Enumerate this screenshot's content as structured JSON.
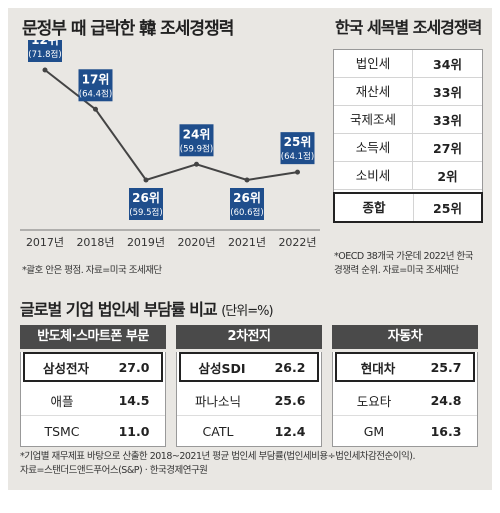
{
  "main_title": "문정부 때 급락한 韓 조세경쟁력",
  "rank_title": "한국 세목별 조세경쟁력",
  "corp_title": "글로벌 기업 법인세 부담률 비교",
  "corp_unit": "(단위=%)",
  "chart_note": "*괄호 안은 평점. 자료=미국 조세재단",
  "rank_note_line1": "*OECD 38개국 가운데 2022년 한국",
  "rank_note_line2": "경쟁력 순위. 자료=미국 조세재단",
  "footer_line1": "*기업별 재무제표 바탕으로 산출한 2018~2021년 평균 법인세 부담률(법인세비용÷법인세차감전순이익).",
  "footer_line2": "자료=스탠더드앤드푸어스(S&P) · 한국경제연구원",
  "chart_data": {
    "type": "line",
    "x": [
      "2017년",
      "2018년",
      "2019년",
      "2020년",
      "2021년",
      "2022년"
    ],
    "ranks": [
      12,
      17,
      26,
      24,
      26,
      25
    ],
    "rank_labels": [
      "12위",
      "17위",
      "26위",
      "24위",
      "26위",
      "25위"
    ],
    "score_labels": [
      "(71.8점)",
      "(64.4점)",
      "(59.5점)",
      "(59.9점)",
      "(60.6점)",
      "(64.1점)"
    ],
    "scores": [
      71.8,
      64.4,
      59.5,
      59.9,
      60.6,
      64.1
    ],
    "y_axis": "rank (inverted, lower is better)",
    "grid": false,
    "colors": {
      "line": "#444444",
      "label_box": "#1f4e8c"
    }
  },
  "rank_table": [
    {
      "tax": "법인세",
      "rank": "34위"
    },
    {
      "tax": "재산세",
      "rank": "33위"
    },
    {
      "tax": "국제조세",
      "rank": "33위"
    },
    {
      "tax": "소득세",
      "rank": "27위"
    },
    {
      "tax": "소비세",
      "rank": "2위"
    },
    {
      "tax": "종합",
      "rank": "25위",
      "highlight": true
    }
  ],
  "sectors": [
    {
      "name": "반도체·스마트폰 부문",
      "companies": [
        {
          "name": "삼성전자",
          "value": "27.0",
          "highlight": true
        },
        {
          "name": "애플",
          "value": "14.5"
        },
        {
          "name": "TSMC",
          "value": "11.0"
        }
      ]
    },
    {
      "name": "2차전지",
      "companies": [
        {
          "name": "삼성SDI",
          "value": "26.2",
          "highlight": true
        },
        {
          "name": "파나소닉",
          "value": "25.6"
        },
        {
          "name": "CATL",
          "value": "12.4"
        }
      ]
    },
    {
      "name": "자동차",
      "companies": [
        {
          "name": "현대차",
          "value": "25.7",
          "highlight": true
        },
        {
          "name": "도요타",
          "value": "24.8"
        },
        {
          "name": "GM",
          "value": "16.3"
        }
      ]
    }
  ]
}
